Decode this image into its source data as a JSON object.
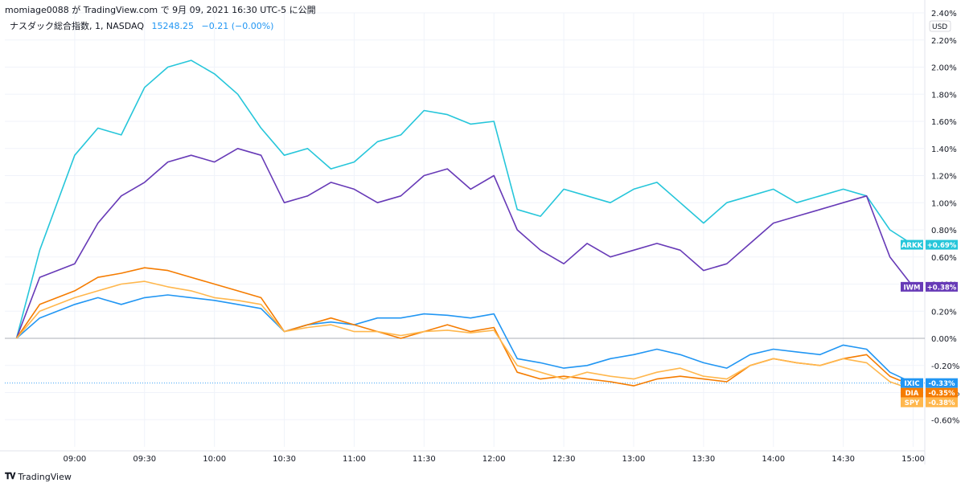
{
  "header": {
    "text": "momiage0088 が TradingView.com で 9月 09, 2021 16:30 UTC-5 に公開"
  },
  "legend": {
    "symbol": "ナスダック総合指数, 1, NASDAQ",
    "value": "15248.25",
    "change": "−0.21 (−0.00%)"
  },
  "footer": {
    "brand": "TradingView",
    "icon": "tradingview-logo-icon"
  },
  "chart_data": {
    "type": "line",
    "currency_label": "USD",
    "ylim": [
      -0.8,
      2.4
    ],
    "x_tick_labels": [
      "09:00",
      "09:30",
      "10:00",
      "10:30",
      "11:00",
      "11:30",
      "12:00",
      "12:30",
      "13:00",
      "13:30",
      "14:00",
      "14:30",
      "15:00"
    ],
    "y_tick_labels": [
      "2.40%",
      "2.20%",
      "2.00%",
      "1.80%",
      "1.60%",
      "1.40%",
      "1.20%",
      "1.00%",
      "0.80%",
      "0.60%",
      "0.40%",
      "0.20%",
      "0.00%",
      "-0.20%",
      "-0.40%",
      "-0.60%"
    ],
    "x": [
      "08:35",
      "08:45",
      "09:00",
      "09:10",
      "09:20",
      "09:30",
      "09:40",
      "09:50",
      "10:00",
      "10:10",
      "10:20",
      "10:30",
      "10:40",
      "10:50",
      "11:00",
      "11:10",
      "11:20",
      "11:30",
      "11:40",
      "11:50",
      "12:00",
      "12:10",
      "12:20",
      "12:30",
      "12:40",
      "12:50",
      "13:00",
      "13:10",
      "13:20",
      "13:30",
      "13:40",
      "13:50",
      "14:00",
      "14:10",
      "14:20",
      "14:30",
      "14:40",
      "14:50",
      "15:00"
    ],
    "series": [
      {
        "name": "ARKK",
        "color": "#26c6da",
        "last_label": "+0.69%",
        "values": [
          0.0,
          0.65,
          1.35,
          1.55,
          1.5,
          1.85,
          2.0,
          2.05,
          1.95,
          1.8,
          1.55,
          1.35,
          1.4,
          1.25,
          1.3,
          1.45,
          1.5,
          1.68,
          1.65,
          1.58,
          1.6,
          0.95,
          0.9,
          1.1,
          1.05,
          1.0,
          1.1,
          1.15,
          1.0,
          0.85,
          1.0,
          1.05,
          1.1,
          1.0,
          1.05,
          1.1,
          1.05,
          0.8,
          0.69
        ]
      },
      {
        "name": "IWM",
        "color": "#673ab7",
        "last_label": "+0.38%",
        "values": [
          0.0,
          0.45,
          0.55,
          0.85,
          1.05,
          1.15,
          1.3,
          1.35,
          1.3,
          1.4,
          1.35,
          1.0,
          1.05,
          1.15,
          1.1,
          1.0,
          1.05,
          1.2,
          1.25,
          1.1,
          1.2,
          0.8,
          0.65,
          0.55,
          0.7,
          0.6,
          0.65,
          0.7,
          0.65,
          0.5,
          0.55,
          0.7,
          0.85,
          0.9,
          0.95,
          1.0,
          1.05,
          0.6,
          0.38
        ]
      },
      {
        "name": "IXIC",
        "color": "#2196f3",
        "last_label": "-0.33%",
        "values": [
          0.0,
          0.15,
          0.25,
          0.3,
          0.25,
          0.3,
          0.32,
          0.3,
          0.28,
          0.25,
          0.22,
          0.05,
          0.1,
          0.12,
          0.1,
          0.15,
          0.15,
          0.18,
          0.17,
          0.15,
          0.18,
          -0.15,
          -0.18,
          -0.22,
          -0.2,
          -0.15,
          -0.12,
          -0.08,
          -0.12,
          -0.18,
          -0.22,
          -0.12,
          -0.08,
          -0.1,
          -0.12,
          -0.05,
          -0.08,
          -0.25,
          -0.33
        ]
      },
      {
        "name": "DIA",
        "color": "#f57c00",
        "last_label": "-0.35%",
        "values": [
          0.0,
          0.25,
          0.35,
          0.45,
          0.48,
          0.52,
          0.5,
          0.45,
          0.4,
          0.35,
          0.3,
          0.05,
          0.1,
          0.15,
          0.1,
          0.05,
          0.0,
          0.05,
          0.1,
          0.05,
          0.08,
          -0.25,
          -0.3,
          -0.28,
          -0.3,
          -0.32,
          -0.35,
          -0.3,
          -0.28,
          -0.3,
          -0.32,
          -0.2,
          -0.15,
          -0.18,
          -0.2,
          -0.15,
          -0.12,
          -0.28,
          -0.35
        ]
      },
      {
        "name": "SPY",
        "color": "#ffb74d",
        "last_label": "-0.38%",
        "values": [
          0.0,
          0.2,
          0.3,
          0.35,
          0.4,
          0.42,
          0.38,
          0.35,
          0.3,
          0.28,
          0.25,
          0.05,
          0.08,
          0.1,
          0.05,
          0.05,
          0.02,
          0.05,
          0.06,
          0.04,
          0.06,
          -0.2,
          -0.25,
          -0.3,
          -0.25,
          -0.28,
          -0.3,
          -0.25,
          -0.22,
          -0.28,
          -0.3,
          -0.2,
          -0.15,
          -0.18,
          -0.2,
          -0.15,
          -0.18,
          -0.32,
          -0.38
        ]
      }
    ]
  }
}
